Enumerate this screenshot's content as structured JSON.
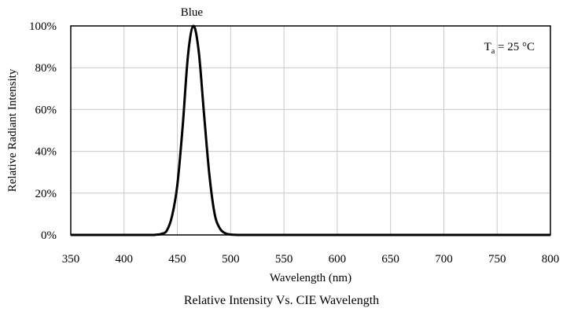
{
  "caption": "Relative Intensity Vs. CIE Wavelength",
  "chart_data": {
    "type": "line",
    "title": "",
    "xlabel": "Wavelength (nm)",
    "ylabel": "Relative Radiant Intensity",
    "xlim": [
      350,
      800
    ],
    "ylim": [
      0,
      100
    ],
    "x_ticks": [
      350,
      400,
      450,
      500,
      550,
      600,
      650,
      700,
      750,
      800
    ],
    "y_ticks": [
      0,
      20,
      40,
      60,
      80,
      100
    ],
    "y_tick_suffix": "%",
    "grid": true,
    "series": [
      {
        "name": "Blue",
        "color": "#000000",
        "x": [
          350,
          420,
          430,
          435,
          440,
          445,
          450,
          455,
          460,
          465,
          470,
          475,
          480,
          485,
          490,
          495,
          500,
          510,
          550,
          800
        ],
        "y": [
          0,
          0,
          0.1,
          0.5,
          2,
          9,
          24,
          52,
          86,
          100,
          88,
          58,
          29,
          10,
          3,
          0.8,
          0.2,
          0,
          0,
          0
        ]
      }
    ],
    "annotations": [
      {
        "text": "Blue",
        "x": 465,
        "y": 100,
        "position": "above"
      }
    ],
    "condition": {
      "symbol": "T",
      "subscript": "a",
      "value": " = 25 °C",
      "position": "top-right"
    }
  }
}
